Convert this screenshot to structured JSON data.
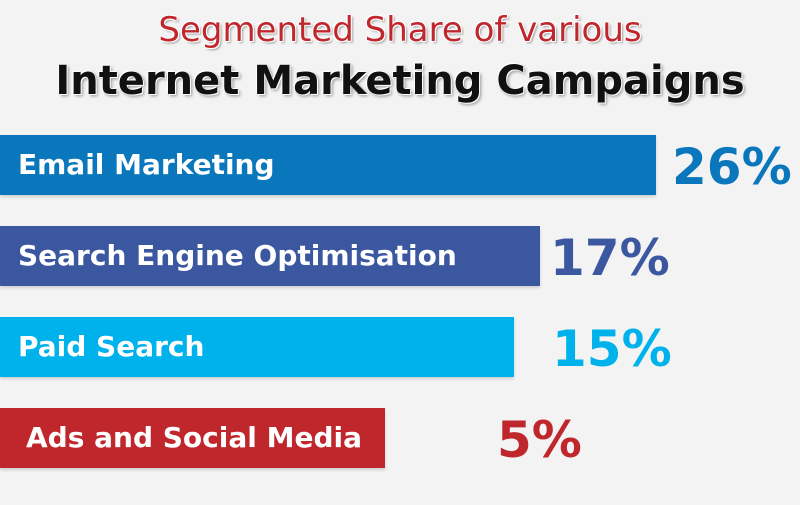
{
  "chart_data": {
    "type": "bar",
    "orientation": "horizontal",
    "title": "Segmented Share of various",
    "subtitle": "Internet Marketing Campaigns",
    "categories": [
      "Email Marketing",
      "Search Engine Optimisation",
      "Paid Search",
      "Ads and Social Media"
    ],
    "values": [
      26,
      17,
      15,
      5
    ],
    "value_labels": [
      "26%",
      "17%",
      "15%",
      "5%"
    ],
    "colors": [
      "#0a77bd",
      "#3b57a0",
      "#00b2ec",
      "#c0272d"
    ],
    "xlabel": "",
    "ylabel": "",
    "grid": false,
    "legend": "none"
  }
}
